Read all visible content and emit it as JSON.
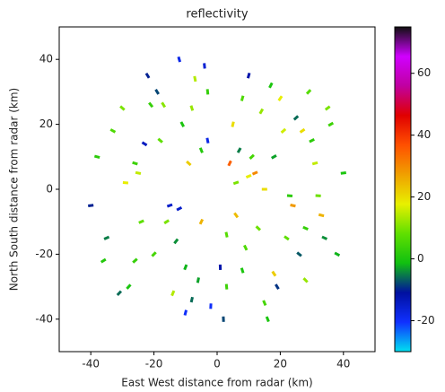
{
  "chart_data": {
    "type": "radar",
    "title": "reflectivity",
    "xlabel": "East West distance from radar (km)",
    "ylabel": "North South distance from radar (km)",
    "xlim": [
      -50,
      50
    ],
    "ylim": [
      -50,
      50
    ],
    "xticks": [
      -40,
      -20,
      0,
      20,
      40
    ],
    "yticks": [
      -40,
      -20,
      0,
      20,
      40
    ],
    "clim": [
      -30,
      75
    ],
    "cticks": [
      -20,
      0,
      20,
      40,
      60
    ],
    "colormap": [
      "#00e0f0",
      "#1030ff",
      "#0010a0",
      "#10c010",
      "#60e000",
      "#e8f000",
      "#f0a000",
      "#ff5000",
      "#e00000",
      "#c000a0",
      "#d000ff",
      "#101010"
    ],
    "x": [
      -38,
      -35,
      -30,
      -28,
      -25,
      -22,
      -20,
      -18,
      -15,
      -12,
      -10,
      -8,
      -5,
      -3,
      2,
      5,
      8,
      10,
      12,
      15,
      18,
      20,
      22,
      25,
      28,
      30,
      33,
      35,
      38,
      40,
      -40,
      -33,
      -26,
      -19,
      -14,
      -9,
      -4,
      3,
      7,
      13,
      17,
      24,
      29,
      34,
      -36,
      -29,
      -23,
      -16,
      -11,
      -6,
      -2,
      4,
      9,
      14,
      19,
      23,
      27,
      31,
      36,
      -31,
      -24,
      -17,
      -10,
      -3,
      6,
      11,
      16,
      21,
      26,
      32,
      -21,
      -13,
      -7,
      1,
      8,
      15,
      -12,
      -5,
      3,
      10,
      -26,
      -8,
      6,
      18,
      28
    ],
    "y": [
      10,
      -15,
      25,
      -30,
      5,
      35,
      -20,
      15,
      -5,
      40,
      -38,
      25,
      -10,
      30,
      -40,
      20,
      -25,
      35,
      5,
      -35,
      10,
      28,
      -15,
      22,
      -28,
      15,
      -8,
      25,
      -20,
      5,
      -5,
      18,
      -22,
      30,
      -32,
      8,
      38,
      -30,
      12,
      -12,
      32,
      -5,
      30,
      -15,
      -22,
      2,
      14,
      -10,
      20,
      -28,
      -36,
      8,
      -18,
      24,
      -30,
      -2,
      18,
      8,
      20,
      -32,
      -10,
      26,
      -24,
      15,
      -8,
      10,
      -40,
      18,
      -20,
      -2,
      26,
      -16,
      34,
      -24,
      28,
      0,
      -6,
      12,
      -14,
      4,
      8,
      -34,
      2,
      -26,
      -12
    ],
    "values": [
      2,
      -5,
      10,
      0,
      15,
      -10,
      5,
      8,
      -15,
      -18,
      -20,
      12,
      25,
      3,
      -8,
      20,
      0,
      -12,
      30,
      5,
      -3,
      18,
      8,
      -6,
      12,
      2,
      25,
      10,
      -2,
      0,
      -10,
      6,
      3,
      -8,
      14,
      22,
      -16,
      4,
      -5,
      9,
      0,
      28,
      7,
      -4,
      1,
      18,
      -14,
      10,
      0,
      -3,
      -20,
      35,
      6,
      12,
      -9,
      2,
      20,
      15,
      4,
      -6,
      8,
      11,
      -2,
      -18,
      24,
      5,
      0,
      16,
      -7,
      9,
      3,
      -4,
      14,
      -12,
      6,
      20,
      -15,
      1,
      7,
      18,
      4,
      -6,
      10,
      22,
      3
    ]
  }
}
